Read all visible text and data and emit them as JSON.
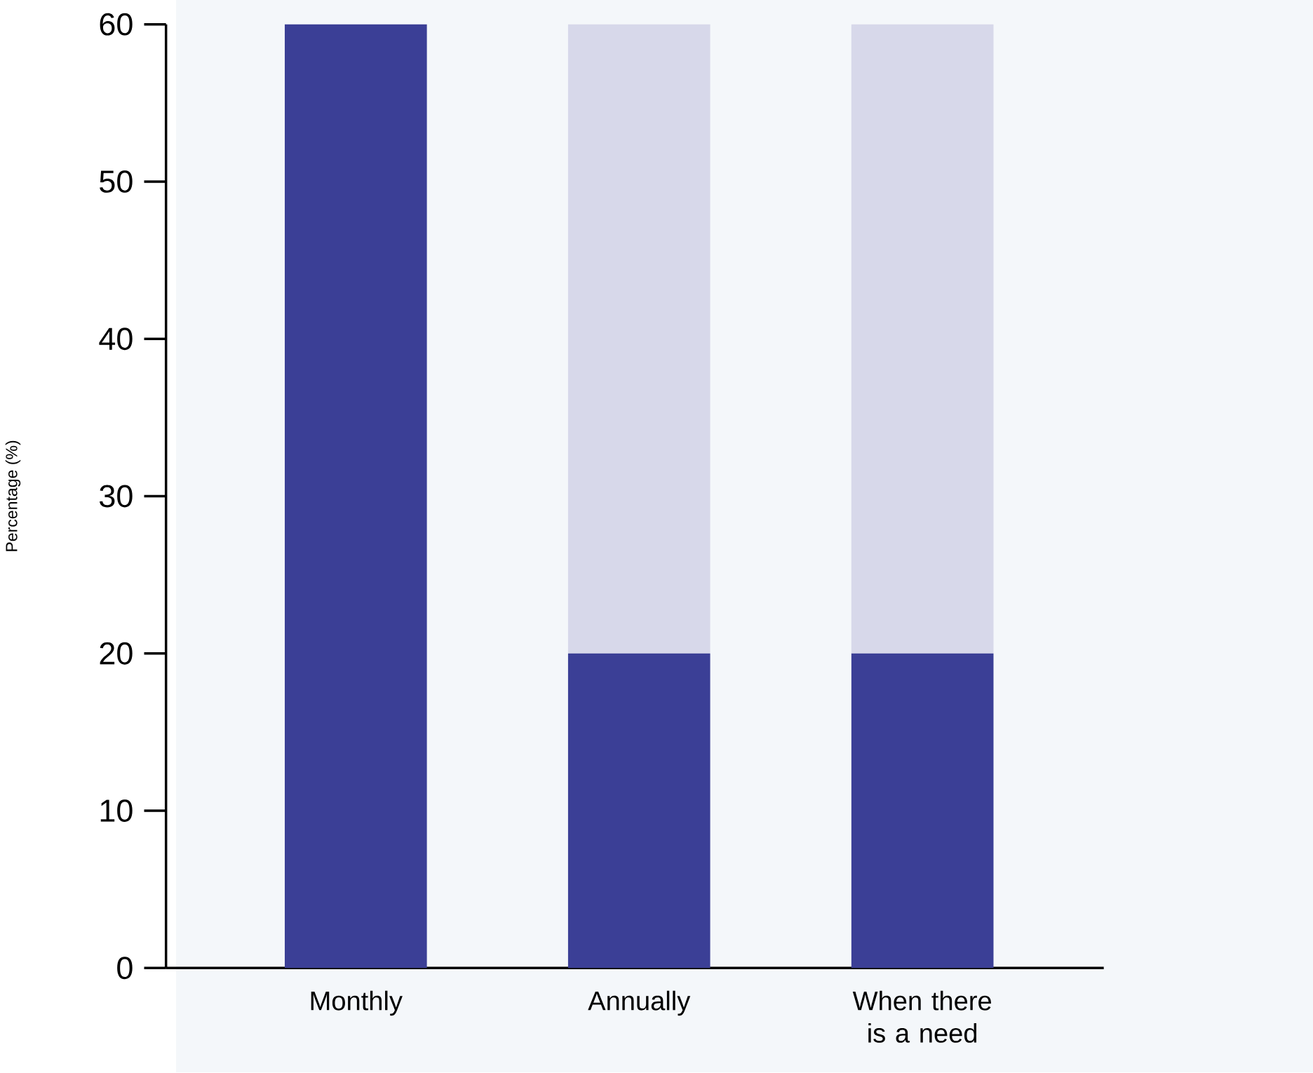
{
  "chart_data": {
    "type": "bar",
    "stacked": true,
    "ylabel": "Percentage (%)",
    "categories": [
      "Monthly",
      "Annually",
      "When there is a need"
    ],
    "series": [
      {
        "color": "#3b3f96",
        "values": [
          60,
          20,
          20
        ]
      },
      {
        "color": "#d7d8ea",
        "values": [
          0,
          40,
          40
        ]
      }
    ],
    "ylim": [
      0,
      60
    ],
    "yticks": [
      0,
      10,
      20,
      30,
      40,
      50,
      60
    ]
  }
}
